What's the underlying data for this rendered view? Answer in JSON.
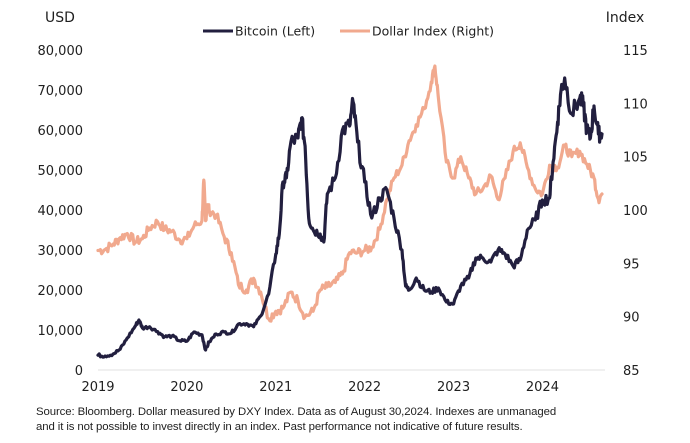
{
  "chart_data": {
    "type": "line",
    "title": "",
    "left_axis_title": "USD",
    "right_axis_title": "Index",
    "x_ticks": [
      "2019",
      "2020",
      "2021",
      "2022",
      "2023",
      "2024"
    ],
    "left_ticks": [
      "0",
      "10,000",
      "20,000",
      "30,000",
      "40,000",
      "50,000",
      "60,000",
      "70,000",
      "80,000"
    ],
    "right_ticks": [
      "85",
      "90",
      "95",
      "100",
      "105",
      "110",
      "115"
    ],
    "ylim_left": [
      0,
      80000
    ],
    "ylim_right": [
      85,
      115
    ],
    "xlim": [
      2019.0,
      2024.67
    ],
    "grid": false,
    "legend_position": "top-center",
    "series": [
      {
        "name": "Bitcoin (Left)",
        "axis": "left",
        "color": "#221f3f",
        "x": [
          2019.0,
          2019.08,
          2019.17,
          2019.25,
          2019.33,
          2019.42,
          2019.46,
          2019.5,
          2019.58,
          2019.67,
          2019.75,
          2019.83,
          2019.92,
          2020.0,
          2020.08,
          2020.17,
          2020.21,
          2020.25,
          2020.33,
          2020.42,
          2020.5,
          2020.58,
          2020.67,
          2020.75,
          2020.83,
          2020.92,
          2021.0,
          2021.04,
          2021.08,
          2021.12,
          2021.17,
          2021.25,
          2021.29,
          2021.33,
          2021.37,
          2021.42,
          2021.5,
          2021.54,
          2021.58,
          2021.67,
          2021.75,
          2021.83,
          2021.87,
          2021.92,
          2022.0,
          2022.08,
          2022.17,
          2022.25,
          2022.33,
          2022.42,
          2022.46,
          2022.5,
          2022.58,
          2022.67,
          2022.75,
          2022.83,
          2022.92,
          2023.0,
          2023.08,
          2023.17,
          2023.25,
          2023.33,
          2023.42,
          2023.5,
          2023.58,
          2023.67,
          2023.75,
          2023.83,
          2023.92,
          2024.0,
          2024.08,
          2024.12,
          2024.17,
          2024.21,
          2024.25,
          2024.33,
          2024.42,
          2024.46,
          2024.5,
          2024.54,
          2024.58,
          2024.63,
          2024.67
        ],
        "values": [
          3700,
          3500,
          4000,
          5200,
          8000,
          11000,
          12500,
          10500,
          10800,
          9600,
          8300,
          8500,
          7300,
          7200,
          9500,
          8800,
          5000,
          7000,
          9000,
          9500,
          9200,
          11500,
          11600,
          10800,
          13500,
          19000,
          29000,
          34000,
          47000,
          48000,
          57000,
          58000,
          63000,
          56000,
          38000,
          35000,
          34000,
          32000,
          44000,
          48000,
          60000,
          61000,
          67000,
          57000,
          47000,
          38000,
          43000,
          45000,
          38000,
          30000,
          21000,
          20000,
          23000,
          20000,
          19500,
          20500,
          17000,
          16500,
          21000,
          23000,
          28000,
          28000,
          27000,
          30000,
          29000,
          26000,
          27500,
          35000,
          37500,
          42500,
          43000,
          52000,
          62000,
          70000,
          73000,
          64000,
          68000,
          66000,
          60000,
          58000,
          66000,
          59000,
          59000
        ]
      },
      {
        "name": "Dollar Index (Right)",
        "axis": "right",
        "color": "#f1a98e",
        "x": [
          2019.0,
          2019.08,
          2019.17,
          2019.25,
          2019.33,
          2019.42,
          2019.5,
          2019.58,
          2019.67,
          2019.75,
          2019.83,
          2019.92,
          2020.0,
          2020.08,
          2020.17,
          2020.19,
          2020.21,
          2020.23,
          2020.25,
          2020.33,
          2020.42,
          2020.5,
          2020.58,
          2020.67,
          2020.75,
          2020.83,
          2020.92,
          2021.0,
          2021.08,
          2021.17,
          2021.25,
          2021.33,
          2021.42,
          2021.5,
          2021.58,
          2021.67,
          2021.75,
          2021.83,
          2021.92,
          2022.0,
          2022.08,
          2022.17,
          2022.25,
          2022.33,
          2022.42,
          2022.5,
          2022.58,
          2022.67,
          2022.75,
          2022.79,
          2022.83,
          2022.92,
          2023.0,
          2023.08,
          2023.17,
          2023.25,
          2023.33,
          2023.42,
          2023.5,
          2023.58,
          2023.67,
          2023.75,
          2023.83,
          2023.92,
          2024.0,
          2024.08,
          2024.17,
          2024.25,
          2024.33,
          2024.42,
          2024.5,
          2024.58,
          2024.63,
          2024.67
        ],
        "values": [
          96.2,
          96.3,
          96.8,
          97.4,
          97.8,
          97.0,
          97.3,
          98.3,
          98.9,
          98.2,
          98.0,
          97.2,
          97.3,
          98.5,
          99.0,
          102.8,
          99.0,
          100.5,
          100.0,
          99.5,
          97.5,
          96.0,
          93.0,
          92.5,
          93.6,
          92.3,
          89.8,
          90.5,
          90.8,
          92.3,
          91.5,
          90.0,
          90.5,
          92.5,
          92.8,
          93.2,
          94.0,
          96.0,
          96.0,
          96.2,
          96.5,
          98.2,
          101.0,
          103.0,
          104.2,
          106.5,
          108.0,
          109.5,
          112.0,
          113.5,
          110.5,
          104.5,
          103.0,
          105.0,
          103.0,
          101.5,
          102.0,
          103.2,
          101.0,
          103.0,
          105.5,
          106.3,
          104.0,
          102.0,
          101.5,
          104.2,
          104.0,
          106.0,
          105.0,
          105.5,
          104.3,
          103.0,
          101.0,
          101.5
        ]
      }
    ]
  },
  "footnote": {
    "line1": "Source: Bloomberg. Dollar measured by DXY Index. Data as of August 30,2024. Indexes are unmanaged",
    "line2": "and it is not possible to invest directly in an index. Past performance not indicative of future results."
  }
}
